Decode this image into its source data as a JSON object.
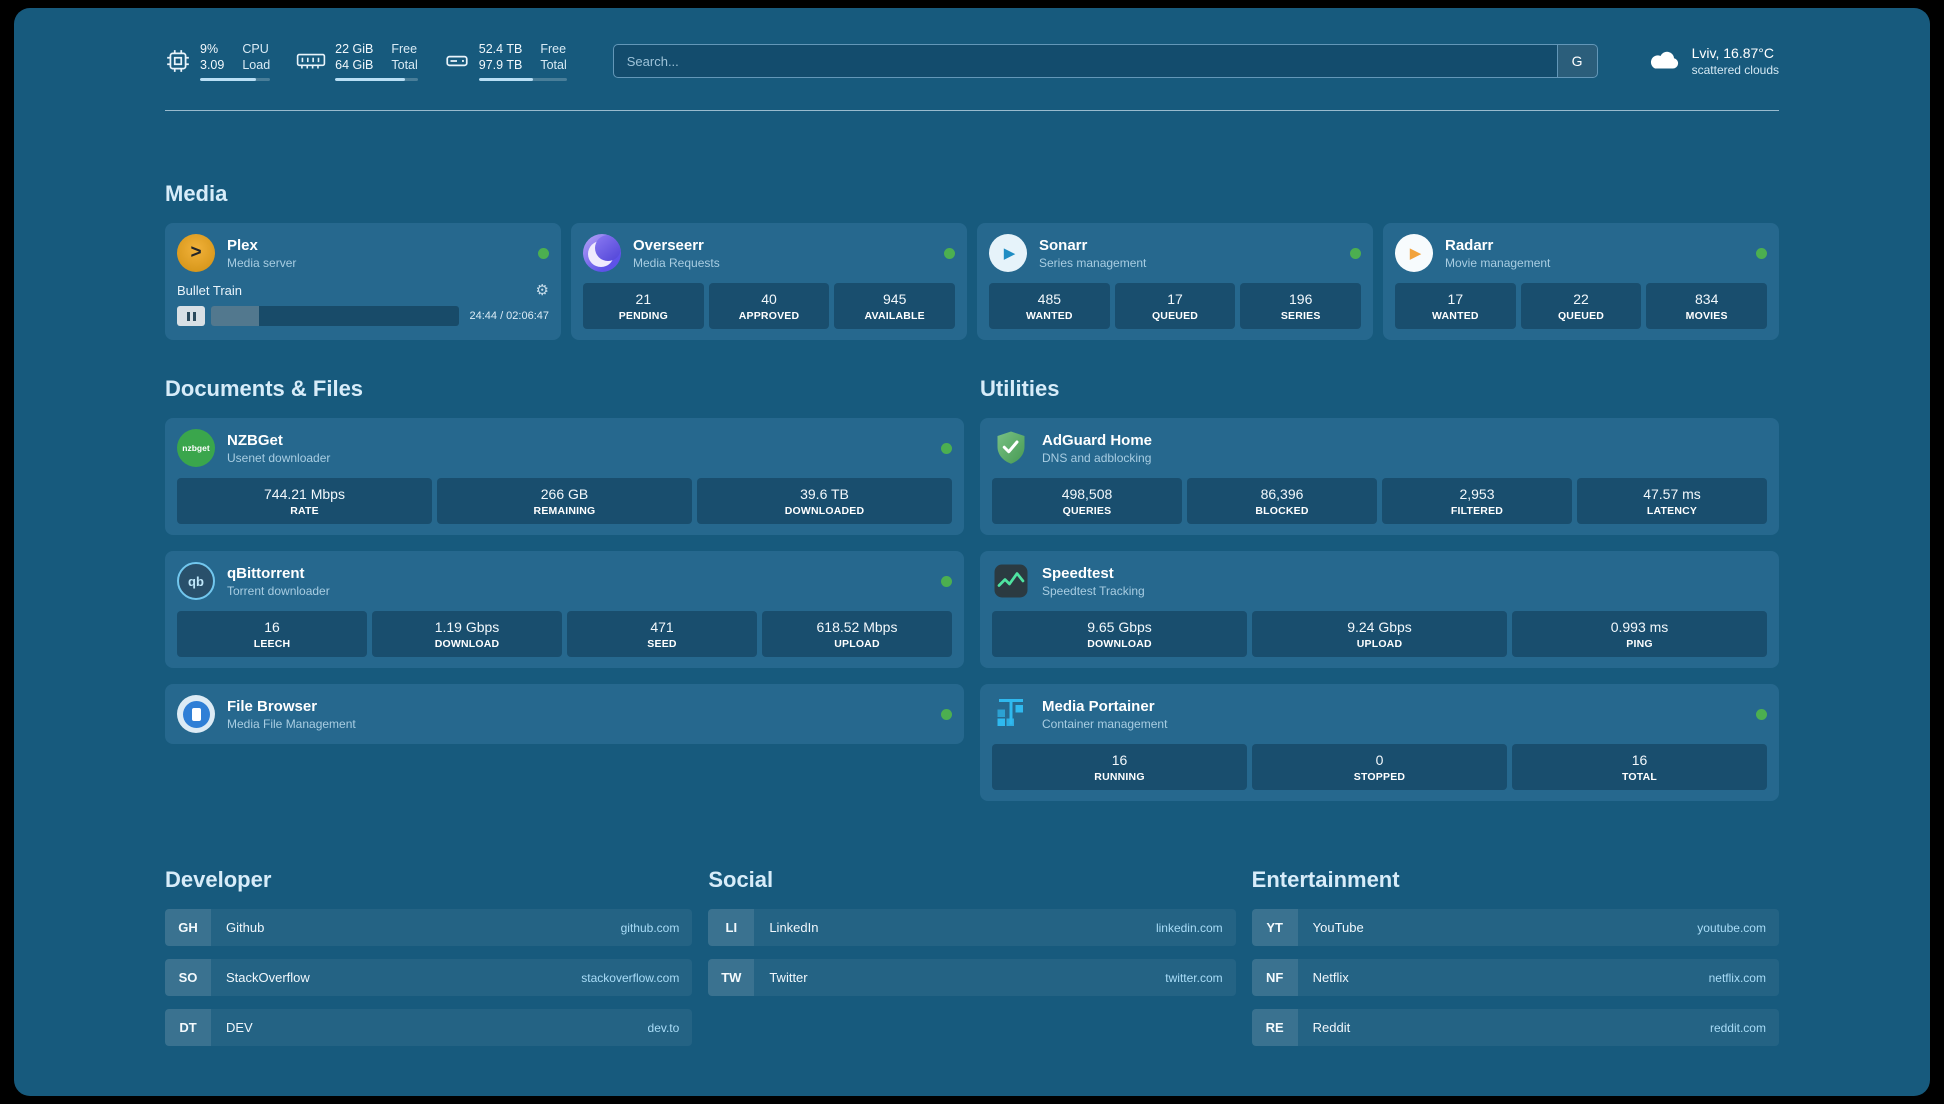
{
  "colors": {
    "background": "#175a7d",
    "card": "#26688e",
    "status_online": "#4caf50",
    "link_url_blue": "#a9dcf7"
  },
  "icons": {
    "gear": "⚙",
    "play": "▶",
    "plex_chevron": ">"
  },
  "topbar": {
    "cpu": {
      "value_top": "9%",
      "value_bottom": "3.09",
      "label_top": "CPU",
      "label_bottom": "Load",
      "fill_pct": 80
    },
    "ram": {
      "value_top": "22 GiB",
      "value_bottom": "64 GiB",
      "label_top": "Free",
      "label_bottom": "Total",
      "fill_pct": 84
    },
    "disk": {
      "value_top": "52.4 TB",
      "value_bottom": "97.9 TB",
      "label_top": "Free",
      "label_bottom": "Total",
      "fill_pct": 62
    },
    "search": {
      "placeholder": "Search...",
      "button_label": "G"
    },
    "weather": {
      "location": "Lviv, 16.87°C",
      "condition": "scattered clouds"
    }
  },
  "media": {
    "title": "Media",
    "plex": {
      "name": "Plex",
      "subtitle": "Media server",
      "now_playing": "Bullet Train",
      "time": "24:44 / 02:06:47",
      "progress_pct": 19.5
    },
    "overseerr": {
      "name": "Overseerr",
      "subtitle": "Media Requests",
      "stats": [
        {
          "value": "21",
          "label": "PENDING"
        },
        {
          "value": "40",
          "label": "APPROVED"
        },
        {
          "value": "945",
          "label": "AVAILABLE"
        }
      ]
    },
    "sonarr": {
      "name": "Sonarr",
      "subtitle": "Series management",
      "stats": [
        {
          "value": "485",
          "label": "WANTED"
        },
        {
          "value": "17",
          "label": "QUEUED"
        },
        {
          "value": "196",
          "label": "SERIES"
        }
      ]
    },
    "radarr": {
      "name": "Radarr",
      "subtitle": "Movie management",
      "stats": [
        {
          "value": "17",
          "label": "WANTED"
        },
        {
          "value": "22",
          "label": "QUEUED"
        },
        {
          "value": "834",
          "label": "MOVIES"
        }
      ]
    }
  },
  "documents": {
    "title": "Documents & Files",
    "nzbget": {
      "name": "NZBGet",
      "subtitle": "Usenet downloader",
      "icon_text": "nzbget",
      "stats": [
        {
          "value": "744.21 Mbps",
          "label": "RATE"
        },
        {
          "value": "266 GB",
          "label": "REMAINING"
        },
        {
          "value": "39.6 TB",
          "label": "DOWNLOADED"
        }
      ]
    },
    "qbittorrent": {
      "name": "qBittorrent",
      "subtitle": "Torrent downloader",
      "icon_text": "qb",
      "stats": [
        {
          "value": "16",
          "label": "LEECH"
        },
        {
          "value": "1.19 Gbps",
          "label": "DOWNLOAD"
        },
        {
          "value": "471",
          "label": "SEED"
        },
        {
          "value": "618.52 Mbps",
          "label": "UPLOAD"
        }
      ]
    },
    "filebrowser": {
      "name": "File Browser",
      "subtitle": "Media File Management"
    }
  },
  "utilities": {
    "title": "Utilities",
    "adguard": {
      "name": "AdGuard Home",
      "subtitle": "DNS and adblocking",
      "stats": [
        {
          "value": "498,508",
          "label": "QUERIES"
        },
        {
          "value": "86,396",
          "label": "BLOCKED"
        },
        {
          "value": "2,953",
          "label": "FILTERED"
        },
        {
          "value": "47.57 ms",
          "label": "LATENCY"
        }
      ]
    },
    "speedtest": {
      "name": "Speedtest",
      "subtitle": "Speedtest Tracking",
      "stats": [
        {
          "value": "9.65 Gbps",
          "label": "DOWNLOAD"
        },
        {
          "value": "9.24 Gbps",
          "label": "UPLOAD"
        },
        {
          "value": "0.993 ms",
          "label": "PING"
        }
      ]
    },
    "portainer": {
      "name": "Media Portainer",
      "subtitle": "Container management",
      "stats": [
        {
          "value": "16",
          "label": "RUNNING"
        },
        {
          "value": "0",
          "label": "STOPPED"
        },
        {
          "value": "16",
          "label": "TOTAL"
        }
      ]
    }
  },
  "links": {
    "developer": {
      "title": "Developer",
      "items": [
        {
          "badge": "GH",
          "name": "Github",
          "url": "github.com"
        },
        {
          "badge": "SO",
          "name": "StackOverflow",
          "url": "stackoverflow.com"
        },
        {
          "badge": "DT",
          "name": "DEV",
          "url": "dev.to"
        }
      ]
    },
    "social": {
      "title": "Social",
      "items": [
        {
          "badge": "LI",
          "name": "LinkedIn",
          "url": "linkedin.com"
        },
        {
          "badge": "TW",
          "name": "Twitter",
          "url": "twitter.com"
        }
      ]
    },
    "entertainment": {
      "title": "Entertainment",
      "items": [
        {
          "badge": "YT",
          "name": "YouTube",
          "url": "youtube.com"
        },
        {
          "badge": "NF",
          "name": "Netflix",
          "url": "netflix.com"
        },
        {
          "badge": "RE",
          "name": "Reddit",
          "url": "reddit.com"
        }
      ]
    }
  }
}
